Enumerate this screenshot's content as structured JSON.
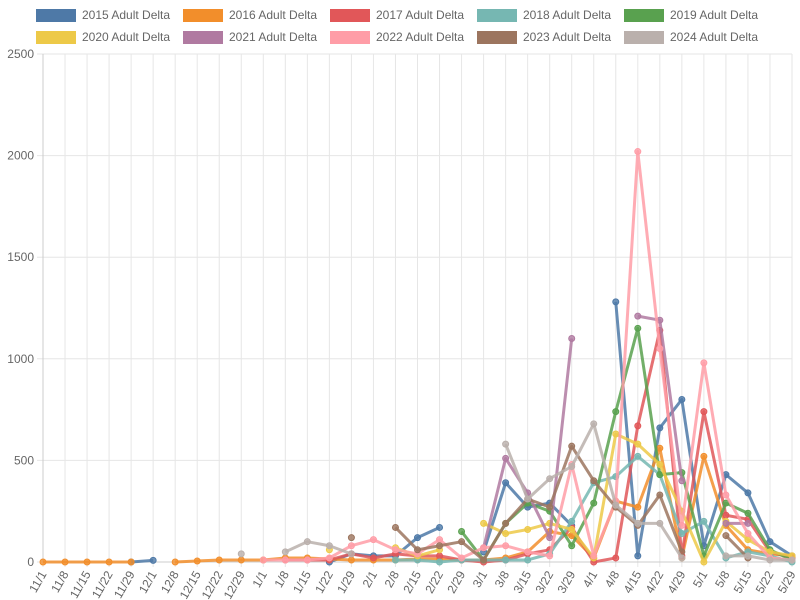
{
  "chart_data": {
    "type": "line",
    "x": [
      "11/1",
      "11/8",
      "11/15",
      "11/22",
      "11/29",
      "12/1",
      "12/8",
      "12/15",
      "12/22",
      "12/29",
      "1/1",
      "1/8",
      "1/15",
      "1/22",
      "1/29",
      "2/1",
      "2/8",
      "2/15",
      "2/22",
      "2/29",
      "3/1",
      "3/8",
      "3/15",
      "3/22",
      "3/29",
      "4/1",
      "4/8",
      "4/15",
      "4/22",
      "4/29",
      "5/1",
      "5/8",
      "5/15",
      "5/22",
      "5/29"
    ],
    "ylim": [
      0,
      2500
    ],
    "yticks": [
      "0",
      "500",
      "1000",
      "1500",
      "2000",
      "2500"
    ],
    "grid": true,
    "legend_position": "top",
    "series": [
      {
        "name": "2015 Adult Delta",
        "color": "#4e79a7",
        "values": [
          null,
          null,
          null,
          null,
          0,
          8,
          null,
          null,
          null,
          null,
          null,
          null,
          null,
          0,
          40,
          30,
          30,
          120,
          170,
          null,
          50,
          390,
          270,
          290,
          180,
          null,
          1280,
          30,
          660,
          800,
          80,
          430,
          340,
          100,
          30
        ]
      },
      {
        "name": "2016 Adult Delta",
        "color": "#f28e2b",
        "values": [
          0,
          0,
          0,
          0,
          0,
          null,
          0,
          5,
          10,
          10,
          10,
          20,
          20,
          15,
          10,
          10,
          10,
          15,
          15,
          10,
          10,
          20,
          50,
          150,
          130,
          20,
          300,
          270,
          560,
          20,
          520,
          180,
          60,
          40,
          30
        ]
      },
      {
        "name": "2017 Adult Delta",
        "color": "#e15759",
        "values": [
          null,
          null,
          null,
          null,
          null,
          null,
          null,
          null,
          null,
          null,
          null,
          10,
          10,
          10,
          40,
          20,
          40,
          30,
          30,
          10,
          0,
          10,
          40,
          60,
          170,
          0,
          20,
          670,
          1140,
          30,
          740,
          230,
          210,
          50,
          20
        ]
      },
      {
        "name": "2018 Adult Delta",
        "color": "#76b7b2",
        "values": [
          null,
          null,
          null,
          null,
          null,
          null,
          null,
          null,
          null,
          null,
          null,
          null,
          null,
          null,
          null,
          null,
          10,
          10,
          0,
          10,
          10,
          10,
          10,
          40,
          200,
          390,
          420,
          520,
          430,
          140,
          200,
          20,
          50,
          30,
          0
        ]
      },
      {
        "name": "2019 Adult Delta",
        "color": "#59a14f",
        "values": [
          null,
          null,
          null,
          null,
          null,
          null,
          null,
          null,
          null,
          null,
          null,
          null,
          null,
          null,
          null,
          null,
          null,
          null,
          null,
          150,
          10,
          190,
          290,
          250,
          80,
          290,
          740,
          1150,
          430,
          440,
          30,
          290,
          240,
          60,
          10
        ]
      },
      {
        "name": "2020 Adult Delta",
        "color": "#edc948",
        "values": [
          null,
          null,
          null,
          null,
          null,
          null,
          null,
          null,
          null,
          null,
          null,
          null,
          null,
          60,
          null,
          null,
          70,
          30,
          60,
          null,
          190,
          140,
          160,
          190,
          160,
          20,
          630,
          580,
          480,
          250,
          0,
          200,
          110,
          50,
          30
        ]
      },
      {
        "name": "2021 Adult Delta",
        "color": "#b07aa1",
        "values": [
          null,
          null,
          null,
          null,
          null,
          null,
          null,
          null,
          null,
          null,
          null,
          null,
          null,
          null,
          null,
          null,
          null,
          null,
          null,
          null,
          70,
          510,
          340,
          120,
          1100,
          null,
          null,
          1210,
          1190,
          400,
          null,
          190,
          190,
          null,
          null
        ]
      },
      {
        "name": "2022 Adult Delta",
        "color": "#ff9da7",
        "values": [
          null,
          null,
          null,
          null,
          null,
          null,
          null,
          null,
          null,
          null,
          10,
          10,
          10,
          20,
          80,
          110,
          60,
          40,
          110,
          20,
          70,
          80,
          50,
          30,
          480,
          30,
          300,
          2020,
          1050,
          180,
          980,
          330,
          140,
          20,
          10
        ]
      },
      {
        "name": "2023 Adult Delta",
        "color": "#9c755f",
        "values": [
          null,
          null,
          null,
          null,
          null,
          null,
          null,
          null,
          null,
          null,
          null,
          null,
          null,
          null,
          120,
          null,
          170,
          60,
          80,
          100,
          10,
          190,
          310,
          270,
          570,
          400,
          270,
          180,
          330,
          50,
          null,
          130,
          20,
          null,
          null
        ]
      },
      {
        "name": "2024 Adult Delta",
        "color": "#bab0ac",
        "values": [
          null,
          null,
          null,
          null,
          null,
          null,
          null,
          null,
          null,
          40,
          null,
          50,
          100,
          80,
          40,
          null,
          null,
          null,
          null,
          null,
          null,
          580,
          310,
          410,
          470,
          680,
          280,
          190,
          190,
          20,
          null,
          30,
          30,
          10,
          10
        ]
      }
    ]
  }
}
